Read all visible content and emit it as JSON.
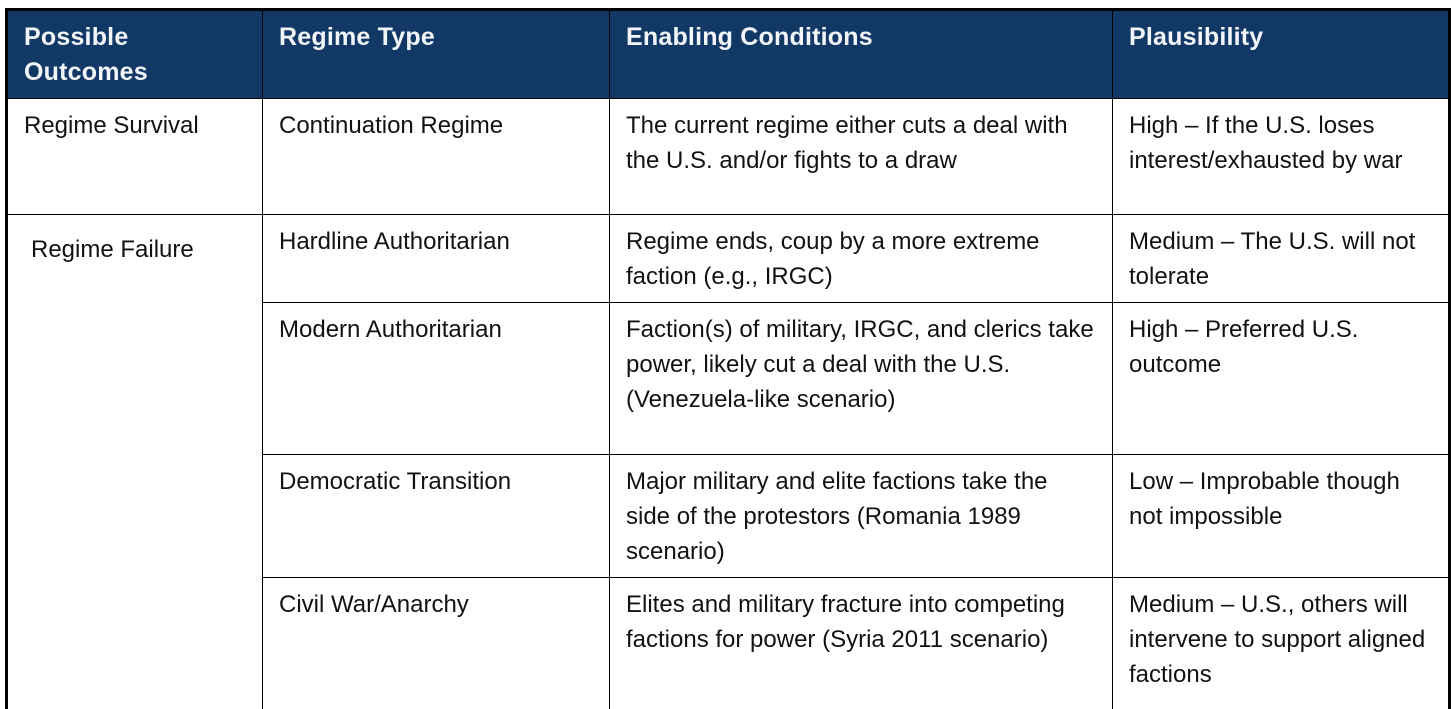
{
  "style": {
    "header_background": "#123866",
    "header_text_color": "#f3f6f9",
    "body_text_color": "#121212",
    "border_color": "#000000"
  },
  "table": {
    "headers": [
      "Possible Outcomes",
      "Regime Type",
      "Enabling Conditions",
      "Plausibility"
    ],
    "rows": [
      {
        "possible_outcome": "Regime Survival",
        "regime_type": "Continuation Regime",
        "enabling_conditions": "The current regime either cuts a deal with the U.S. and/or fights to a draw",
        "plausibility": "High – If the U.S. loses interest/exhausted by war"
      },
      {
        "possible_outcome": "Regime Failure",
        "regime_type": "Hardline Authoritarian",
        "enabling_conditions": "Regime ends, coup by a more extreme faction (e.g., IRGC)",
        "plausibility": "Medium – The U.S. will not tolerate"
      },
      {
        "possible_outcome": "",
        "regime_type": "Modern Authoritarian",
        "enabling_conditions": "Faction(s) of military, IRGC, and clerics take power, likely cut a deal with the U.S. (Venezuela-like scenario)",
        "plausibility": "High – Preferred U.S. outcome"
      },
      {
        "possible_outcome": "",
        "regime_type": "Democratic Transition",
        "enabling_conditions": "Major military and elite factions take the side of the protestors (Romania 1989 scenario)",
        "plausibility": "Low – Improbable though not impossible"
      },
      {
        "possible_outcome": "",
        "regime_type": "Civil War/Anarchy",
        "enabling_conditions": "Elites and military fracture into competing factions for power (Syria 2011 scenario)",
        "plausibility": "Medium – U.S., others will intervene to support aligned factions"
      }
    ]
  }
}
